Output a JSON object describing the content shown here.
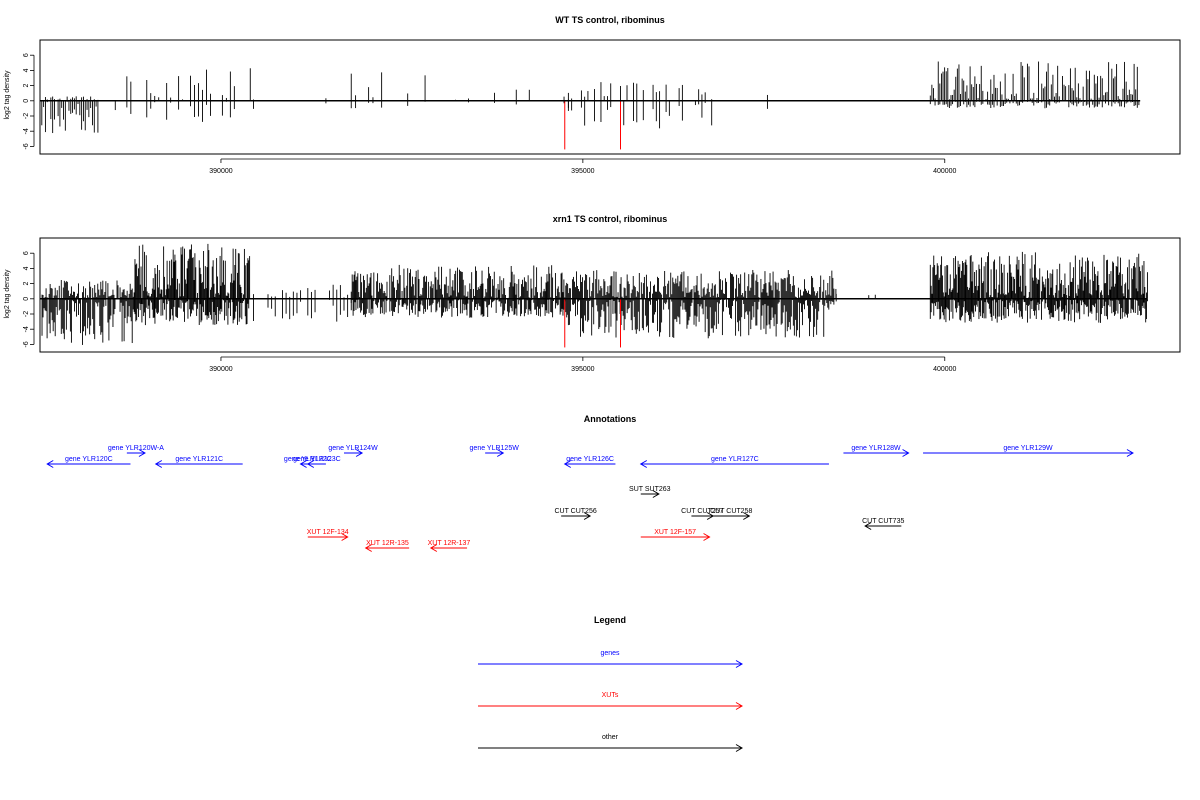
{
  "chart_data": [
    {
      "type": "bar",
      "title": "WT TS control, ribominus",
      "ylabel": "log2 tag density",
      "xlabel": "",
      "xlim": [
        387500,
        403250
      ],
      "ylim": [
        -7,
        8
      ],
      "xticks": [
        390000,
        395000,
        400000
      ],
      "xtick_labels": [
        "390000",
        "395000",
        "400000"
      ],
      "yticks": [
        -6,
        -4,
        -2,
        0,
        2,
        4,
        6
      ],
      "ytick_labels": [
        "-6",
        "-4",
        "-2",
        "0",
        "2",
        "4",
        "6"
      ],
      "baseline_range": [
        387500,
        402700
      ],
      "density_segments": [
        {
          "range": [
            387500,
            388300
          ],
          "plus_max": 0.6,
          "minus_max": 4.3,
          "step": 25,
          "fill": 0.95
        },
        {
          "range": [
            388300,
            388700
          ],
          "plus_max": 0.0,
          "minus_max": 1.5,
          "step": 120,
          "fill": 0.4
        },
        {
          "range": [
            388700,
            390450
          ],
          "plus_max": 4.3,
          "minus_max": 3.8,
          "step": 55,
          "fill": 0.55
        },
        {
          "range": [
            390450,
            391800
          ],
          "plus_max": 1.0,
          "minus_max": 1.2,
          "step": 250,
          "fill": 0.25
        },
        {
          "range": [
            391800,
            394800
          ],
          "plus_max": 3.8,
          "minus_max": 1.0,
          "step": 60,
          "fill": 0.45
        },
        {
          "range": [
            394800,
            396800
          ],
          "plus_max": 2.5,
          "minus_max": 3.8,
          "step": 45,
          "fill": 0.6
        },
        {
          "range": [
            396800,
            398400
          ],
          "plus_max": 1.2,
          "minus_max": 3.0,
          "step": 150,
          "fill": 0.35
        },
        {
          "range": [
            398400,
            399800
          ],
          "plus_max": 1.5,
          "minus_max": 0.4,
          "step": 220,
          "fill": 0.2
        },
        {
          "range": [
            399800,
            402700
          ],
          "plus_max": 5.2,
          "minus_max": 1.0,
          "step": 22,
          "fill": 0.95
        }
      ],
      "highlight_bars": [
        {
          "x": 394750,
          "y": -6.4
        },
        {
          "x": 395520,
          "y": -6.4
        }
      ]
    },
    {
      "type": "bar",
      "title": "xrn1 TS control, ribominus",
      "ylabel": "log2 tag density",
      "xlabel": "",
      "xlim": [
        387500,
        403250
      ],
      "ylim": [
        -7,
        8
      ],
      "xticks": [
        390000,
        395000,
        400000
      ],
      "xtick_labels": [
        "390000",
        "395000",
        "400000"
      ],
      "yticks": [
        -6,
        -4,
        -2,
        0,
        2,
        4,
        6
      ],
      "ytick_labels": [
        "-6",
        "-4",
        "-2",
        "0",
        "2",
        "4",
        "6"
      ],
      "baseline_range": [
        387500,
        402800
      ],
      "density_segments": [
        {
          "range": [
            387500,
            388800
          ],
          "plus_max": 2.5,
          "minus_max": 6.2,
          "step": 14,
          "fill": 0.98
        },
        {
          "range": [
            388800,
            390400
          ],
          "plus_max": 7.3,
          "minus_max": 3.5,
          "step": 12,
          "fill": 0.98
        },
        {
          "range": [
            390400,
            391800
          ],
          "plus_max": 2.0,
          "minus_max": 3.0,
          "step": 50,
          "fill": 0.5
        },
        {
          "range": [
            391800,
            394800
          ],
          "plus_max": 4.5,
          "minus_max": 2.5,
          "step": 13,
          "fill": 0.95
        },
        {
          "range": [
            394800,
            398500
          ],
          "plus_max": 3.8,
          "minus_max": 5.2,
          "step": 14,
          "fill": 0.95
        },
        {
          "range": [
            398500,
            399800
          ],
          "plus_max": 1.2,
          "minus_max": 0.6,
          "step": 90,
          "fill": 0.4
        },
        {
          "range": [
            399800,
            402800
          ],
          "plus_max": 6.2,
          "minus_max": 3.2,
          "step": 12,
          "fill": 0.98
        }
      ],
      "highlight_bars": [
        {
          "x": 394750,
          "y": -6.4
        },
        {
          "x": 395520,
          "y": -6.4
        }
      ]
    }
  ],
  "annotations": {
    "title": "Annotations",
    "xlim": [
      387500,
      403250
    ],
    "features": [
      {
        "label": "gene YLR120C",
        "start": 387600,
        "end": 388750,
        "strand": "-",
        "row": 1,
        "color": "#0000ff"
      },
      {
        "label": "gene YLR120W-A",
        "start": 388700,
        "end": 388950,
        "strand": "+",
        "row": 0,
        "color": "#0000ff"
      },
      {
        "label": "gene YLR121C",
        "start": 389100,
        "end": 390300,
        "strand": "-",
        "row": 1,
        "color": "#0000ff"
      },
      {
        "label": "gene YLR122C",
        "start": 391100,
        "end": 391300,
        "strand": "-",
        "row": 1,
        "color": "#0000ff"
      },
      {
        "label": "gene YLR123C",
        "start": 391200,
        "end": 391450,
        "strand": "-",
        "row": 1,
        "color": "#0000ff"
      },
      {
        "label": "gene YLR124W",
        "start": 391700,
        "end": 391950,
        "strand": "+",
        "row": 0,
        "color": "#0000ff"
      },
      {
        "label": "gene YLR125W",
        "start": 393650,
        "end": 393900,
        "strand": "+",
        "row": 0,
        "color": "#0000ff"
      },
      {
        "label": "gene YLR126C",
        "start": 394750,
        "end": 395450,
        "strand": "-",
        "row": 1,
        "color": "#0000ff"
      },
      {
        "label": "gene YLR127C",
        "start": 395800,
        "end": 398400,
        "strand": "-",
        "row": 1,
        "color": "#0000ff"
      },
      {
        "label": "gene YLR128W",
        "start": 398600,
        "end": 399500,
        "strand": "+",
        "row": 0,
        "color": "#0000ff"
      },
      {
        "label": "gene YLR129W",
        "start": 399700,
        "end": 402600,
        "strand": "+",
        "row": 0,
        "color": "#0000ff"
      },
      {
        "label": "SUT SUT263",
        "start": 395800,
        "end": 396050,
        "strand": "+",
        "row": 3,
        "color": "#000000"
      },
      {
        "label": "CUT CUT256",
        "start": 394700,
        "end": 395100,
        "strand": "+",
        "row": 5,
        "color": "#000000"
      },
      {
        "label": "CUT CUT257",
        "start": 396500,
        "end": 396800,
        "strand": "+",
        "row": 5,
        "color": "#000000"
      },
      {
        "label": "CUT CUT258",
        "start": 396800,
        "end": 397300,
        "strand": "+",
        "row": 5,
        "color": "#000000"
      },
      {
        "label": "CUT CUT735",
        "start": 398900,
        "end": 399400,
        "strand": "-",
        "row": 6,
        "color": "#000000"
      },
      {
        "label": "XUT 12F-134",
        "start": 391200,
        "end": 391750,
        "strand": "+",
        "row": 7,
        "color": "#ff0000"
      },
      {
        "label": "XUT 12R-135",
        "start": 392000,
        "end": 392600,
        "strand": "-",
        "row": 8,
        "color": "#ff0000"
      },
      {
        "label": "XUT 12R-137",
        "start": 392900,
        "end": 393400,
        "strand": "-",
        "row": 8,
        "color": "#ff0000"
      },
      {
        "label": "XUT 12F-157",
        "start": 395800,
        "end": 396750,
        "strand": "+",
        "row": 7,
        "color": "#ff0000"
      }
    ]
  },
  "legend": {
    "title": "Legend",
    "items": [
      {
        "label": "genes",
        "color": "#0000ff"
      },
      {
        "label": "XUTs",
        "color": "#ff0000"
      },
      {
        "label": "other",
        "color": "#000000"
      }
    ]
  }
}
